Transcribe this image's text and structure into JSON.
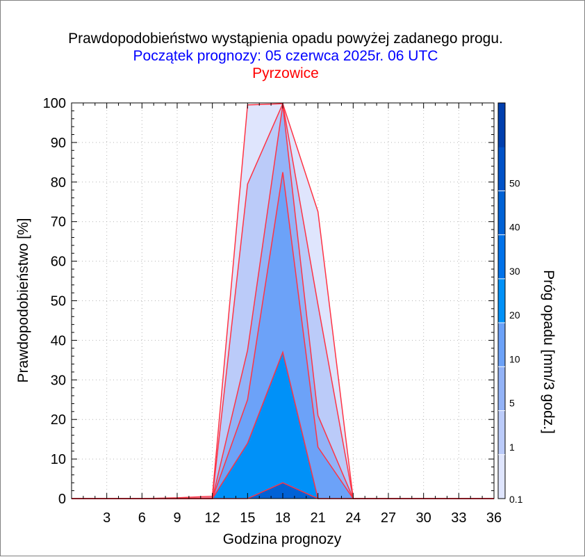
{
  "title_lines": [
    "Prawdopodobieństwo wystąpienia opadu powyżej zadanego progu.",
    "Początek prognozy: 05 czerwca 2025r. 06 UTC",
    "Pyrzowice"
  ],
  "colors": {
    "title": "#000000",
    "subtitle": "#0000ff",
    "station": "#ff0000",
    "outline": "#ff3344",
    "grid": "#b4b4b4"
  },
  "chart_data": {
    "type": "area",
    "title": "Prawdopodobieństwo wystąpienia opadu powyżej zadanego progu.",
    "subtitle": "Początek prognozy: 05 czerwca 2025r. 06 UTC",
    "station": "Pyrzowice",
    "xlabel": "Godzina prognozy",
    "ylabel": "Prawdopodobieństwo [%]",
    "colorbar_label": "Próg opadu [mm/3 godz.]",
    "xlim": [
      0,
      36
    ],
    "ylim": [
      0,
      100
    ],
    "xticks": [
      3,
      6,
      9,
      12,
      15,
      18,
      21,
      24,
      27,
      30,
      33,
      36
    ],
    "yticks": [
      0,
      10,
      20,
      30,
      40,
      50,
      60,
      70,
      80,
      90,
      100
    ],
    "grid": true,
    "x": [
      0,
      3,
      6,
      9,
      12,
      15,
      18,
      21,
      24,
      27,
      30,
      33,
      36
    ],
    "series": [
      {
        "name": "0.1",
        "color": "#dfe5fd",
        "values": [
          0,
          0,
          0,
          0.2,
          0.6,
          99.5,
          99.8,
          72.5,
          0,
          0,
          0,
          0,
          0
        ]
      },
      {
        "name": "1",
        "color": "#bbcbf9",
        "values": [
          0,
          0,
          0,
          0,
          0.2,
          79.5,
          99.8,
          49,
          0,
          0,
          0,
          0,
          0
        ]
      },
      {
        "name": "5",
        "color": "#93b3f7",
        "values": [
          0,
          0,
          0,
          0,
          0,
          37.5,
          99.5,
          21,
          0,
          0,
          0,
          0,
          0
        ]
      },
      {
        "name": "10",
        "color": "#6ca2f8",
        "values": [
          0,
          0,
          0,
          0,
          0,
          25,
          82.5,
          13,
          0,
          0,
          0,
          0,
          0
        ]
      },
      {
        "name": "20",
        "color": "#0091f8",
        "values": [
          0,
          0,
          0,
          0,
          0,
          14,
          37,
          0,
          0,
          0,
          0,
          0,
          0
        ]
      },
      {
        "name": "40",
        "color": "#0062d6",
        "values": [
          0,
          0,
          0,
          0,
          0,
          0,
          4,
          0,
          0,
          0,
          0,
          0,
          0
        ]
      }
    ],
    "colorbar": {
      "labels": [
        "0.1",
        "1",
        "5",
        "10",
        "20",
        "30",
        "40",
        "50"
      ],
      "colors": [
        "#dfe5fd",
        "#bbcbf9",
        "#93b3f7",
        "#6ca2f8",
        "#0091f8",
        "#0072ea",
        "#0062d6",
        "#0052c8",
        "#003fae"
      ]
    }
  }
}
